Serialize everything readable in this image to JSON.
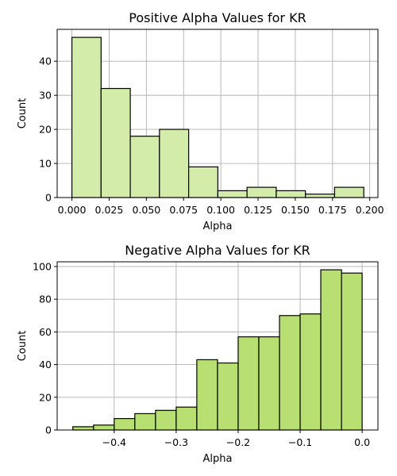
{
  "chart_data": [
    {
      "type": "bar",
      "title": "Positive Alpha Values for KR",
      "xlabel": "Alpha",
      "ylabel": "Count",
      "color": "#d3ecaa",
      "xlim": [
        -0.0099,
        0.2055
      ],
      "ylim": [
        0,
        49.35
      ],
      "xticks": [
        0.0,
        0.025,
        0.05,
        0.075,
        0.1,
        0.125,
        0.15,
        0.175,
        0.2
      ],
      "xtick_labels": [
        "0.000",
        "0.025",
        "0.050",
        "0.075",
        "0.100",
        "0.125",
        "0.150",
        "0.175",
        "0.200"
      ],
      "yticks": [
        0,
        10,
        20,
        30,
        40
      ],
      "ytick_labels": [
        "0",
        "10",
        "20",
        "30",
        "40"
      ],
      "grid": true,
      "bins": [
        {
          "x0": 0.0,
          "x1": 0.0196,
          "count": 47
        },
        {
          "x0": 0.0196,
          "x1": 0.0392,
          "count": 32
        },
        {
          "x0": 0.0392,
          "x1": 0.0588,
          "count": 18
        },
        {
          "x0": 0.0588,
          "x1": 0.0784,
          "count": 20
        },
        {
          "x0": 0.0784,
          "x1": 0.098,
          "count": 9
        },
        {
          "x0": 0.098,
          "x1": 0.1176,
          "count": 2
        },
        {
          "x0": 0.1176,
          "x1": 0.1372,
          "count": 3
        },
        {
          "x0": 0.1372,
          "x1": 0.1568,
          "count": 2
        },
        {
          "x0": 0.1568,
          "x1": 0.1764,
          "count": 1
        },
        {
          "x0": 0.1764,
          "x1": 0.196,
          "count": 3
        }
      ]
    },
    {
      "type": "bar",
      "title": "Negative Alpha Values for KR",
      "xlabel": "Alpha",
      "ylabel": "Count",
      "color": "#b8df72",
      "xlim": [
        -0.492,
        0.0255
      ],
      "ylim": [
        0,
        102.9
      ],
      "xticks": [
        -0.4,
        -0.3,
        -0.2,
        -0.1,
        0.0
      ],
      "xtick_labels": [
        "−0.4",
        "−0.3",
        "−0.2",
        "−0.1",
        "0.0"
      ],
      "yticks": [
        0,
        20,
        40,
        60,
        80,
        100
      ],
      "ytick_labels": [
        "0",
        "20",
        "40",
        "60",
        "80",
        "100"
      ],
      "grid": true,
      "bins": [
        {
          "x0": -0.4667,
          "x1": -0.4333,
          "count": 2
        },
        {
          "x0": -0.4333,
          "x1": -0.4,
          "count": 3
        },
        {
          "x0": -0.4,
          "x1": -0.3667,
          "count": 7
        },
        {
          "x0": -0.3667,
          "x1": -0.3333,
          "count": 10
        },
        {
          "x0": -0.3333,
          "x1": -0.3,
          "count": 12
        },
        {
          "x0": -0.3,
          "x1": -0.2667,
          "count": 14
        },
        {
          "x0": -0.2667,
          "x1": -0.2333,
          "count": 43
        },
        {
          "x0": -0.2333,
          "x1": -0.2,
          "count": 41
        },
        {
          "x0": -0.2,
          "x1": -0.1667,
          "count": 57
        },
        {
          "x0": -0.1667,
          "x1": -0.1333,
          "count": 57
        },
        {
          "x0": -0.1333,
          "x1": -0.1,
          "count": 70
        },
        {
          "x0": -0.1,
          "x1": -0.0667,
          "count": 71
        },
        {
          "x0": -0.0667,
          "x1": -0.0333,
          "count": 98
        },
        {
          "x0": -0.0333,
          "x1": 0.0,
          "count": 96
        }
      ]
    }
  ]
}
